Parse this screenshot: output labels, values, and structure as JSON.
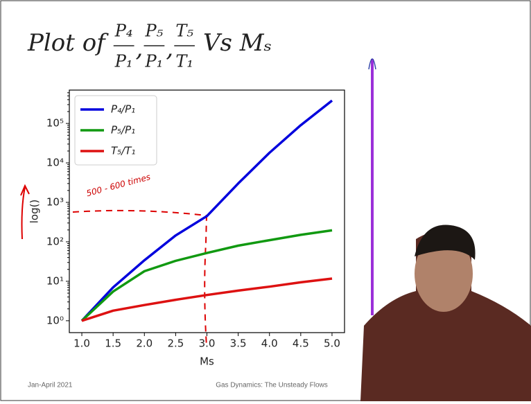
{
  "chart_data": {
    "type": "line",
    "title": {
      "lead": "Plot of",
      "fractions": [
        [
          "P₄",
          "P₁"
        ],
        [
          "P₅",
          "P₁"
        ],
        [
          "T₅",
          "T₁"
        ]
      ],
      "separator": ",",
      "tail": "Vs Mₛ"
    },
    "x_label": "Ms",
    "y_label": "log()",
    "annotation": "500 - 600 times",
    "x": [
      1.0,
      1.5,
      2.0,
      2.5,
      3.0,
      3.5,
      4.0,
      4.5,
      5.0
    ],
    "series": [
      {
        "name": "P₄/P₁",
        "color": "#0000dd",
        "values": [
          1,
          7,
          34,
          145,
          450,
          3000,
          18000,
          90000,
          380000
        ]
      },
      {
        "name": "P₅/P₁",
        "color": "#119911",
        "values": [
          1,
          5.5,
          18,
          33,
          52,
          80,
          110,
          150,
          195
        ]
      },
      {
        "name": "T₅/T₁",
        "color": "#dd1111",
        "values": [
          1,
          1.8,
          2.5,
          3.4,
          4.5,
          5.8,
          7.3,
          9.4,
          11.7
        ]
      }
    ],
    "xlim": [
      0.8,
      5.2
    ],
    "ylim": [
      0.5,
      700000
    ],
    "log_y": true,
    "legend": "upper-left",
    "xticks": [
      {
        "value": 1.0,
        "label": "1.0"
      },
      {
        "value": 1.5,
        "label": "1.5"
      },
      {
        "value": 2.0,
        "label": "2.0"
      },
      {
        "value": 2.5,
        "label": "2.5"
      },
      {
        "value": 3.0,
        "label": "3.0"
      },
      {
        "value": 3.5,
        "label": "3.5"
      },
      {
        "value": 4.0,
        "label": "4.0"
      },
      {
        "value": 4.5,
        "label": "4.5"
      },
      {
        "value": 5.0,
        "label": "5.0"
      }
    ],
    "yticks": [
      {
        "value": 1,
        "label": "10⁰"
      },
      {
        "value": 10,
        "label": "10¹"
      },
      {
        "value": 100,
        "label": "10²"
      },
      {
        "value": 1000,
        "label": "10³"
      },
      {
        "value": 10000,
        "label": "10⁴"
      },
      {
        "value": 100000,
        "label": "10⁵"
      }
    ]
  },
  "footer": {
    "left": "Jan-April 2021",
    "center": "Gas Dynamics: The Unsteady Flows"
  }
}
